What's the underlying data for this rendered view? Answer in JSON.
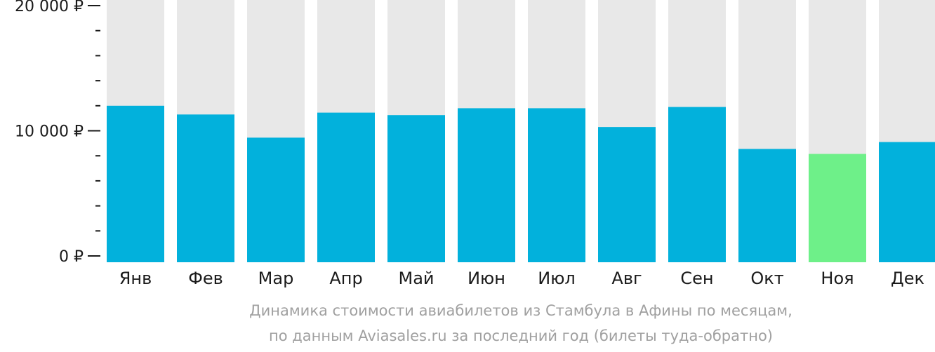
{
  "chart_data": {
    "type": "bar",
    "categories": [
      "Янв",
      "Фев",
      "Мар",
      "Апр",
      "Май",
      "Июн",
      "Июл",
      "Авг",
      "Сен",
      "Окт",
      "Ноя",
      "Дек"
    ],
    "values": [
      12000,
      11300,
      9450,
      11450,
      11250,
      11800,
      11800,
      10300,
      11900,
      8550,
      8150,
      9100
    ],
    "ylim": [
      0,
      20000
    ],
    "y_ticks": [
      {
        "value": 0,
        "label": "0 ₽"
      },
      {
        "value": 10000,
        "label": "10 000 ₽"
      },
      {
        "value": 20000,
        "label": "20 000 ₽"
      }
    ],
    "minor_tick_step": 2000,
    "highlight_index": 10,
    "colors": {
      "bar": "#02b1dc",
      "highlight": "#6ef089",
      "background_bar": "#e8e8e8",
      "axis": "#1a1a1a"
    }
  },
  "caption": {
    "line1": "Динамика стоимости авиабилетов из Стамбула в Афины по месяцам,",
    "line2": "по данным Aviasales.ru за последний год (билеты туда-обратно)"
  }
}
